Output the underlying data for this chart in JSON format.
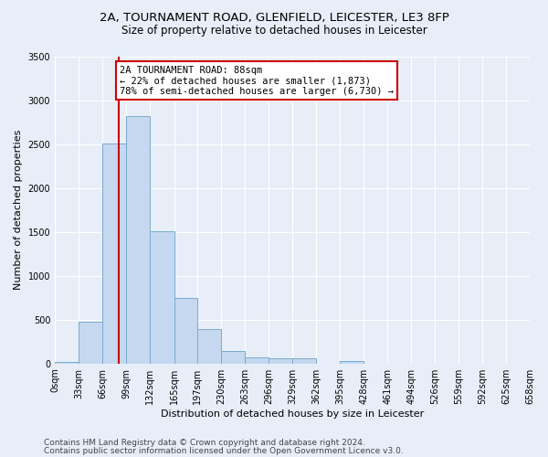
{
  "title_line1": "2A, TOURNAMENT ROAD, GLENFIELD, LEICESTER, LE3 8FP",
  "title_line2": "Size of property relative to detached houses in Leicester",
  "xlabel": "Distribution of detached houses by size in Leicester",
  "ylabel": "Number of detached properties",
  "bar_color": "#c5d8f0",
  "bar_edgecolor": "#7aabcc",
  "background_color": "#e8eef8",
  "grid_color": "#ffffff",
  "vline_color": "#cc0000",
  "vline_x": 88,
  "annotation_text": "2A TOURNAMENT ROAD: 88sqm\n← 22% of detached houses are smaller (1,873)\n78% of semi-detached houses are larger (6,730) →",
  "annotation_box_color": "#ffffff",
  "annotation_box_edgecolor": "#cc0000",
  "bin_edges": [
    0,
    33,
    66,
    99,
    132,
    165,
    197,
    230,
    263,
    296,
    329,
    362,
    395,
    428,
    461,
    494,
    526,
    559,
    592,
    625,
    658
  ],
  "bar_heights": [
    20,
    480,
    2510,
    2820,
    1510,
    750,
    390,
    140,
    75,
    55,
    55,
    0,
    30,
    0,
    0,
    0,
    0,
    0,
    0,
    0
  ],
  "ylim": [
    0,
    3500
  ],
  "yticks": [
    0,
    500,
    1000,
    1500,
    2000,
    2500,
    3000,
    3500
  ],
  "footer_line1": "Contains HM Land Registry data © Crown copyright and database right 2024.",
  "footer_line2": "Contains public sector information licensed under the Open Government Licence v3.0.",
  "title_fontsize": 9.5,
  "subtitle_fontsize": 8.5,
  "axis_label_fontsize": 8,
  "tick_fontsize": 7,
  "annotation_fontsize": 7.5,
  "footer_fontsize": 6.5
}
